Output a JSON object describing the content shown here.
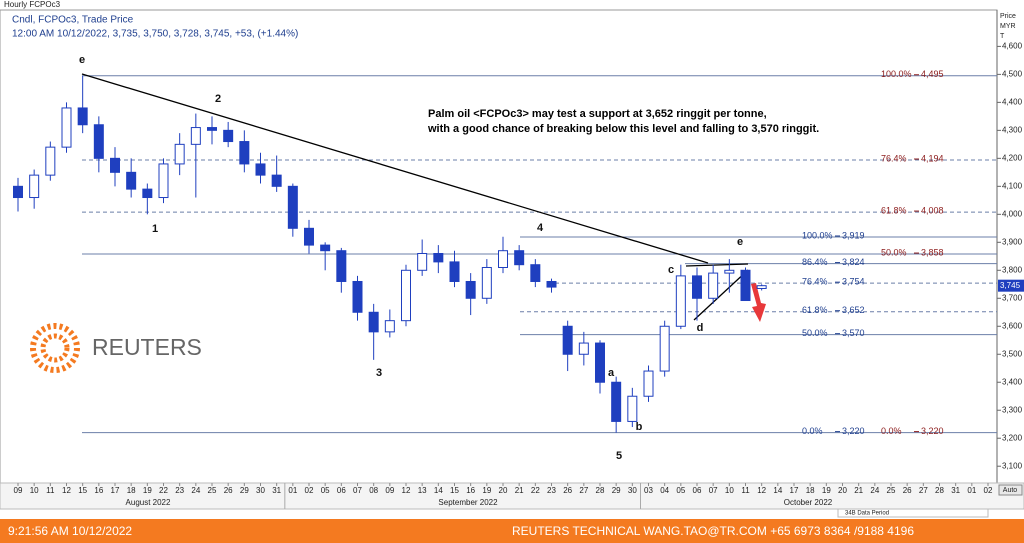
{
  "chart_data": {
    "type": "candlestick",
    "title": "Hourly FCPOc3",
    "subtitle": "Cndl, FCPOc3, Trade Price",
    "info": "12:00 AM 10/12/2022, 3,735, 3,750, 3,728, 3,745, +53, (+1.44%)",
    "y_axis_label": [
      "Price",
      "MYR",
      "T"
    ],
    "annotation": [
      "Palm oil <FCPOc3> may test a support at 3,652 ringgit per tonne,",
      "with a good chance of breaking below this level and falling to 3,570 ringgit."
    ],
    "categories": [
      "09",
      "10",
      "11",
      "12",
      "15",
      "16",
      "17",
      "18",
      "19",
      "22",
      "23",
      "24",
      "25",
      "26",
      "29",
      "30",
      "31",
      "01",
      "02",
      "05",
      "06",
      "07",
      "08",
      "09",
      "12",
      "13",
      "14",
      "15",
      "16",
      "19",
      "20",
      "21",
      "22",
      "23",
      "26",
      "27",
      "28",
      "29",
      "30",
      "03",
      "04",
      "05",
      "06",
      "07",
      "10",
      "11",
      "12",
      "14",
      "17",
      "18",
      "19",
      "20",
      "21",
      "24",
      "25",
      "26",
      "27",
      "28",
      "31",
      "01",
      "02"
    ],
    "month_labels": [
      "August 2022",
      "September 2022",
      "October 2022"
    ],
    "open": [
      4100,
      4060,
      4140,
      4240,
      4380,
      4320,
      4200,
      4150,
      4090,
      4060,
      4180,
      4250,
      4310,
      4300,
      4260,
      4180,
      4140,
      4100,
      3950,
      3890,
      3870,
      3760,
      3650,
      3580,
      3620,
      3800,
      3860,
      3830,
      3760,
      3700,
      3810,
      3870,
      3820,
      3760,
      3600,
      3500,
      3540,
      3400,
      3260,
      3350,
      3440,
      3600,
      3780,
      3700,
      3790,
      3800,
      3735,
      null,
      null,
      null,
      null,
      null,
      null,
      null,
      null,
      null,
      null,
      null,
      null,
      null,
      null
    ],
    "high": [
      4130,
      4160,
      4260,
      4400,
      4495,
      4350,
      4240,
      4200,
      4110,
      4200,
      4290,
      4360,
      4350,
      4330,
      4300,
      4220,
      4210,
      4110,
      3980,
      3900,
      3880,
      3780,
      3680,
      3660,
      3820,
      3910,
      3890,
      3870,
      3790,
      3840,
      3920,
      3890,
      3840,
      3770,
      3620,
      3580,
      3550,
      3420,
      3380,
      3460,
      3620,
      3820,
      3810,
      3820,
      3840,
      3810,
      3750,
      null,
      null,
      null,
      null,
      null,
      null,
      null,
      null,
      null,
      null,
      null,
      null,
      null,
      null
    ],
    "low": [
      4010,
      4020,
      4120,
      4220,
      4290,
      4150,
      4100,
      4060,
      4000,
      4040,
      4140,
      4060,
      4250,
      4240,
      4150,
      4110,
      4080,
      3920,
      3860,
      3800,
      3720,
      3620,
      3480,
      3560,
      3600,
      3780,
      3790,
      3740,
      3640,
      3680,
      3790,
      3800,
      3740,
      3720,
      3440,
      3460,
      3360,
      3220,
      3240,
      3330,
      3420,
      3590,
      3620,
      3680,
      3720,
      3700,
      3728,
      null,
      null,
      null,
      null,
      null,
      null,
      null,
      null,
      null,
      null,
      null,
      null,
      null,
      null
    ],
    "close": [
      4060,
      4140,
      4240,
      4380,
      4320,
      4200,
      4150,
      4090,
      4060,
      4180,
      4250,
      4310,
      4300,
      4260,
      4180,
      4140,
      4100,
      3950,
      3890,
      3870,
      3760,
      3650,
      3580,
      3620,
      3800,
      3860,
      3830,
      3760,
      3700,
      3810,
      3870,
      3820,
      3760,
      3740,
      3500,
      3540,
      3400,
      3260,
      3350,
      3440,
      3600,
      3780,
      3700,
      3790,
      3800,
      3692,
      3745,
      null,
      null,
      null,
      null,
      null,
      null,
      null,
      null,
      null,
      null,
      null,
      null,
      null,
      null
    ],
    "up_color": "#ffffff",
    "down_color": "#1f3fbf",
    "edge_color": "#1f3fbf",
    "price_tag": {
      "value": 3745,
      "label": "3,745"
    },
    "ylim": [
      3040,
      4730
    ],
    "yticks": [
      {
        "value": 3100,
        "label": "3,100"
      },
      {
        "value": 3200,
        "label": "3,200"
      },
      {
        "value": 3300,
        "label": "3,300"
      },
      {
        "value": 3400,
        "label": "3,400"
      },
      {
        "value": 3500,
        "label": "3,500"
      },
      {
        "value": 3600,
        "label": "3,600"
      },
      {
        "value": 3700,
        "label": "3,700"
      },
      {
        "value": 3800,
        "label": "3,800"
      },
      {
        "value": 3900,
        "label": "3,900"
      },
      {
        "value": 4000,
        "label": "4,000"
      },
      {
        "value": 4100,
        "label": "4,100"
      },
      {
        "value": 4200,
        "label": "4,200"
      },
      {
        "value": 4300,
        "label": "4,300"
      },
      {
        "value": 4400,
        "label": "4,400"
      },
      {
        "value": 4500,
        "label": "4,500"
      },
      {
        "value": 4600,
        "label": "4,600"
      }
    ],
    "grid": false,
    "fib_levels": [
      {
        "pct": "100.0%",
        "value": 4495,
        "value_label": "4,495",
        "color": "#8b1a1a",
        "dashed": false
      },
      {
        "pct": "76.4%",
        "value": 4194,
        "value_label": "4,194",
        "color": "#8b1a1a",
        "dashed": true
      },
      {
        "pct": "61.8%",
        "value": 4008,
        "value_label": "4,008",
        "color": "#8b1a1a",
        "dashed": true
      },
      {
        "pct": "100.0%",
        "value": 3919,
        "value_label": "3,919",
        "color": "#1f3f8f",
        "dashed": false
      },
      {
        "pct": "50.0%",
        "value": 3858,
        "value_label": "3,858",
        "color": "#8b1a1a",
        "dashed": false
      },
      {
        "pct": "86.4%",
        "value": 3824,
        "value_label": "3,824",
        "color": "#1f3f8f",
        "dashed": false
      },
      {
        "pct": "76.4%",
        "value": 3754,
        "value_label": "3,754",
        "color": "#1f3f8f",
        "dashed": true
      },
      {
        "pct": "61.8%",
        "value": 3652,
        "value_label": "3,652",
        "color": "#1f3f8f",
        "dashed": true
      },
      {
        "pct": "50.0%",
        "value": 3570,
        "value_label": "3,570",
        "color": "#1f3f8f",
        "dashed": false
      },
      {
        "pct": "0.0%",
        "value": 3220,
        "value_label": "3,220",
        "color": "#1f3f8f",
        "dashed": false
      },
      {
        "pct": "0.0%",
        "value": 3220,
        "value_label": "3,220",
        "color": "#8b1a1a",
        "dashed": false
      }
    ],
    "wave_labels": [
      "e",
      "2",
      "1",
      "3",
      "4",
      "5",
      "a",
      "b",
      "c",
      "d",
      "e"
    ],
    "logo_text": "REUTERS",
    "data_period": "34B Data Period",
    "auto_button": "Auto",
    "footer_time": "9:21:56 AM 10/12/2022",
    "footer_contact": "REUTERS TECHNICAL  WANG.TAO@TR.COM  +65 6973 8364 /9188 4196"
  }
}
